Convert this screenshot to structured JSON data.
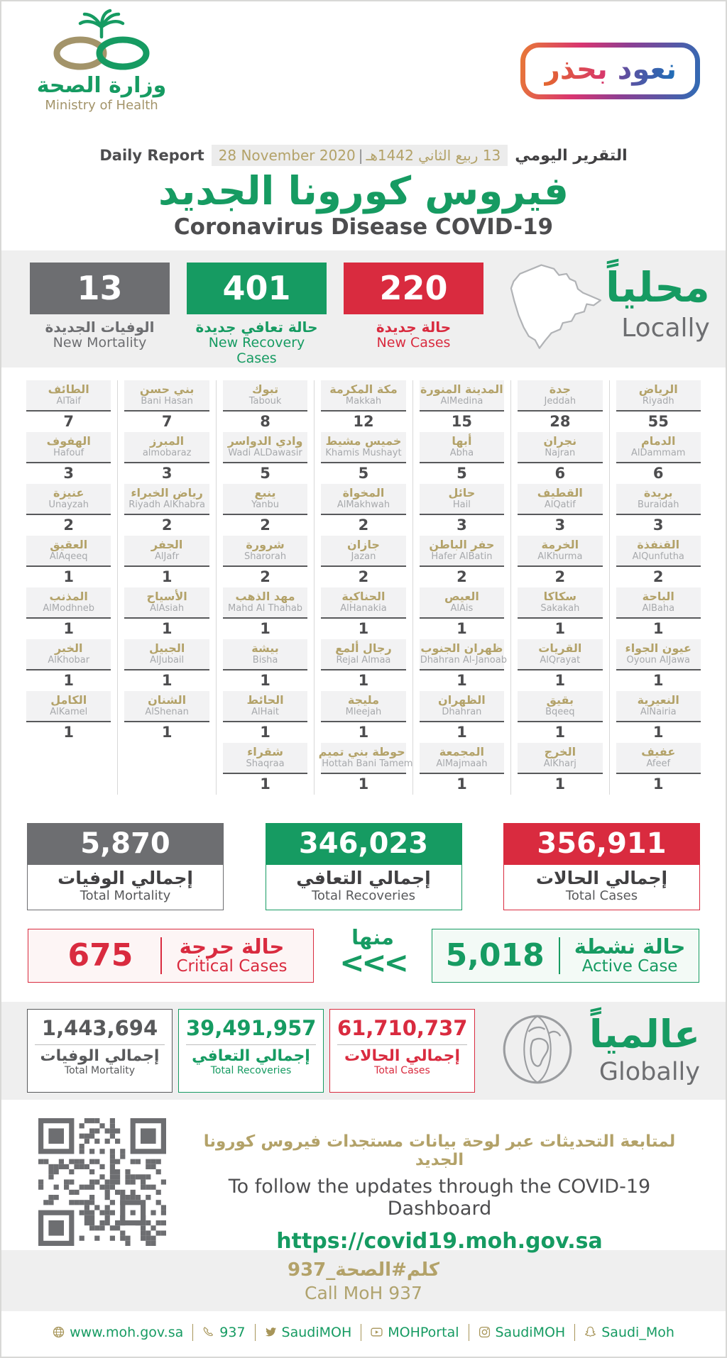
{
  "header": {
    "logo": {
      "ar": "وزارة الصحة",
      "en": "Ministry of Health"
    },
    "badge": {
      "word_first": "نعود",
      "word_second": "بحذر"
    },
    "report_ar": "التقرير اليومي",
    "report_en": "Daily Report",
    "date_ar": "13 ربيع الثاني 1442هـ",
    "date_sep": "|",
    "date_en": "28 November 2020",
    "title_ar": "فيروس كورونا الجديد",
    "title_en": "Coronavirus Disease COVID-19"
  },
  "locally": {
    "heading_ar": "محلياً",
    "heading_en": "Locally",
    "stats": [
      {
        "value": "13",
        "label_ar": "الوفيات الجديدة",
        "label_en": "New Mortality",
        "color": "#6d6e71"
      },
      {
        "value": "401",
        "label_ar": "حالة تعافي جديدة",
        "label_en": "New Recovery Cases",
        "color": "#169b62"
      },
      {
        "value": "220",
        "label_ar": "حالة جديدة",
        "label_en": "New Cases",
        "color": "#d92b3f"
      }
    ],
    "columns": [
      [
        {
          "ar": "الطائف",
          "en": "AlTaif",
          "value": 7
        },
        {
          "ar": "الهفوف",
          "en": "Hafouf",
          "value": 3
        },
        {
          "ar": "عنيزة",
          "en": "Unayzah",
          "value": 2
        },
        {
          "ar": "العقيق",
          "en": "AlAqeeq",
          "value": 1
        },
        {
          "ar": "المذنب",
          "en": "AlModhneb",
          "value": 1
        },
        {
          "ar": "الخبر",
          "en": "AlKhobar",
          "value": 1
        },
        {
          "ar": "الكامل",
          "en": "AlKamel",
          "value": 1
        }
      ],
      [
        {
          "ar": "بني حسن",
          "en": "Bani Hasan",
          "value": 7
        },
        {
          "ar": "المبرز",
          "en": "almobaraz",
          "value": 3
        },
        {
          "ar": "رياض الخبراء",
          "en": "Riyadh AlKhabra",
          "value": 2
        },
        {
          "ar": "الجفر",
          "en": "AlJafr",
          "value": 1
        },
        {
          "ar": "الأسياح",
          "en": "AlAsiah",
          "value": 1
        },
        {
          "ar": "الجبيل",
          "en": "AlJubail",
          "value": 1
        },
        {
          "ar": "الشنان",
          "en": "AlShenan",
          "value": 1
        }
      ],
      [
        {
          "ar": "تبوك",
          "en": "Tabouk",
          "value": 8
        },
        {
          "ar": "وادي الدواسر",
          "en": "Wadi ALDawasir",
          "value": 5
        },
        {
          "ar": "ينبع",
          "en": "Yanbu",
          "value": 2
        },
        {
          "ar": "شرورة",
          "en": "Sharorah",
          "value": 2
        },
        {
          "ar": "مهد الذهب",
          "en": "Mahd Al Thahab",
          "value": 1
        },
        {
          "ar": "بيشة",
          "en": "Bisha",
          "value": 1
        },
        {
          "ar": "الحائط",
          "en": "AlHait",
          "value": 1
        },
        {
          "ar": "شقراء",
          "en": "Shaqraa",
          "value": 1
        }
      ],
      [
        {
          "ar": "مكة المكرمة",
          "en": "Makkah",
          "value": 12
        },
        {
          "ar": "خميس مشيط",
          "en": "Khamis Mushayt",
          "value": 5
        },
        {
          "ar": "المخواة",
          "en": "AlMakhwah",
          "value": 2
        },
        {
          "ar": "جازان",
          "en": "Jazan",
          "value": 2
        },
        {
          "ar": "الحناكية",
          "en": "AlHanakia",
          "value": 1
        },
        {
          "ar": "رجال ألمع",
          "en": "Rejal Almaa",
          "value": 1
        },
        {
          "ar": "مليجة",
          "en": "Mleejah",
          "value": 1
        },
        {
          "ar": "حوطة بني تميم",
          "en": "Hottah Bani Tamem",
          "value": 1
        }
      ],
      [
        {
          "ar": "المدينة المنورة",
          "en": "AlMedina",
          "value": 15
        },
        {
          "ar": "أبها",
          "en": "Abha",
          "value": 5
        },
        {
          "ar": "حائل",
          "en": "Hail",
          "value": 3
        },
        {
          "ar": "حفر الباطن",
          "en": "Hafer AlBatin",
          "value": 2
        },
        {
          "ar": "العيص",
          "en": "AlAis",
          "value": 1
        },
        {
          "ar": "ظهران الجنوب",
          "en": "Dhahran Al-Janoab",
          "value": 1
        },
        {
          "ar": "الظهران",
          "en": "Dhahran",
          "value": 1
        },
        {
          "ar": "المجمعة",
          "en": "AlMajmaah",
          "value": 1
        }
      ],
      [
        {
          "ar": "جدة",
          "en": "Jeddah",
          "value": 28
        },
        {
          "ar": "نجران",
          "en": "Najran",
          "value": 6
        },
        {
          "ar": "القطيف",
          "en": "AlQatif",
          "value": 3
        },
        {
          "ar": "الخرمة",
          "en": "AlKhurma",
          "value": 2
        },
        {
          "ar": "سكاكا",
          "en": "Sakakah",
          "value": 1
        },
        {
          "ar": "القريات",
          "en": "AlQrayat",
          "value": 1
        },
        {
          "ar": "بقيق",
          "en": "Bqeeq",
          "value": 1
        },
        {
          "ar": "الخرج",
          "en": "AlKharj",
          "value": 1
        }
      ],
      [
        {
          "ar": "الرياض",
          "en": "Riyadh",
          "value": 55
        },
        {
          "ar": "الدمام",
          "en": "AlDammam",
          "value": 6
        },
        {
          "ar": "بريدة",
          "en": "Buraidah",
          "value": 3
        },
        {
          "ar": "القنفذة",
          "en": "AlQunfutha",
          "value": 2
        },
        {
          "ar": "الباحة",
          "en": "AlBaha",
          "value": 1
        },
        {
          "ar": "عيون الجواء",
          "en": "Oyoun AlJawa",
          "value": 1
        },
        {
          "ar": "النعيرية",
          "en": "AlNairia",
          "value": 1
        },
        {
          "ar": "عفيف",
          "en": "Afeef",
          "value": 1
        }
      ]
    ]
  },
  "totals": [
    {
      "value": "5,870",
      "label_ar": "إجمالي الوفيات",
      "label_en": "Total Mortality",
      "color": "#6d6e71"
    },
    {
      "value": "346,023",
      "label_ar": "إجمالي التعافي",
      "label_en": "Total Recoveries",
      "color": "#169b62"
    },
    {
      "value": "356,911",
      "label_ar": "إجمالي الحالات",
      "label_en": "Total Cases",
      "color": "#d92b3f"
    }
  ],
  "breakdown": {
    "critical": {
      "value": "675",
      "label_ar": "حالة حرجة",
      "label_en": "Critical Cases"
    },
    "of_which": "منها",
    "chevrons": "<<<",
    "active": {
      "value": "5,018",
      "label_ar": "حالة نشطة",
      "label_en": "Active Case"
    }
  },
  "globally": {
    "heading_ar": "عالمياً",
    "heading_en": "Globally",
    "stats": [
      {
        "value": "1,443,694",
        "label_ar": "إجمالي الوفيات",
        "label_en": "Total Mortality",
        "color": "#58595b"
      },
      {
        "value": "39,491,957",
        "label_ar": "إجمالي التعافي",
        "label_en": "Total Recoveries",
        "color": "#169b62"
      },
      {
        "value": "61,710,737",
        "label_ar": "إجمالي الحالات",
        "label_en": "Total Cases",
        "color": "#d92b3f"
      }
    ]
  },
  "dashboard": {
    "line_ar": "لمتابعة التحديثات عبر لوحة بيانات مستجدات فيروس كورونا الجديد",
    "line_en": "To follow the updates through the COVID-19 Dashboard",
    "url": "https://covid19.moh.gov.sa"
  },
  "call": {
    "ar": "كلم#الصحة_937",
    "en": "Call MoH 937"
  },
  "footer": {
    "links": [
      {
        "icon": "globe-icon",
        "label": "www.moh.gov.sa"
      },
      {
        "icon": "phone-icon",
        "label": "937"
      },
      {
        "icon": "twitter-icon",
        "label": "SaudiMOH"
      },
      {
        "icon": "youtube-icon",
        "label": "MOHPortal"
      },
      {
        "icon": "instagram-icon",
        "label": "SaudiMOH"
      },
      {
        "icon": "snapchat-icon",
        "label": "Saudi_Moh"
      }
    ]
  },
  "colors": {
    "green": "#169b62",
    "red": "#d92b3f",
    "gray": "#6d6e71",
    "gold": "#b3a269",
    "dark_text": "#4d4d4f",
    "muted_text": "#a7a9ac",
    "band_bg": "#efefef",
    "badge_pink": "#d93570",
    "badge_blue": "#2e6cb5"
  }
}
